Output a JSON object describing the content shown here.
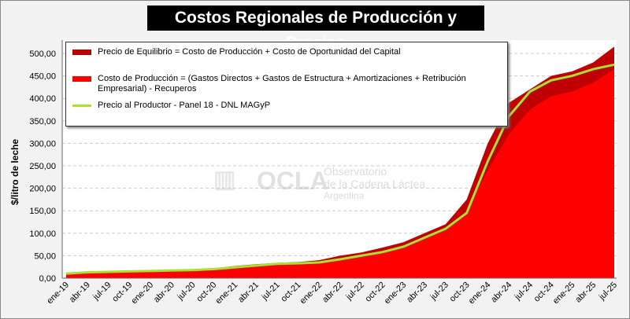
{
  "title": "Costos Regionales de Producción y Precios",
  "watermark": {
    "brand": "OCLA",
    "line1": "Observatorio",
    "line2": "de la Cadena Láctea",
    "line3": "Argentina"
  },
  "colors": {
    "equilibrio": "#c00000",
    "costo": "#ff0000",
    "precio": "#a6e22e"
  },
  "chart_data": {
    "type": "area",
    "title": "Costos Regionales de Producción y Precios",
    "ylabel": "$/litro de leche",
    "xlabel": "",
    "ylim": [
      0,
      500
    ],
    "yticks": [
      "0,00",
      "50,00",
      "100,00",
      "150,00",
      "200,00",
      "250,00",
      "300,00",
      "350,00",
      "400,00",
      "450,00",
      "500,00"
    ],
    "categories": [
      "ene-19",
      "abr-19",
      "jul-19",
      "oct-19",
      "ene-20",
      "abr-20",
      "jul-20",
      "oct-20",
      "ene-21",
      "abr-21",
      "jul-21",
      "oct-21",
      "ene-22",
      "abr-22",
      "jul-22",
      "oct-22",
      "ene-23",
      "abr-23",
      "jul-23",
      "oct-23",
      "ene-24",
      "abr-24",
      "jul-24",
      "oct-24",
      "ene-25",
      "abr-25",
      "jul-25"
    ],
    "series": [
      {
        "name": "Precio de Equilibrio = Costo de Producción + Costo de Oportunidad del Capital",
        "type": "area",
        "values": [
          10,
          13,
          15,
          16,
          17,
          18,
          20,
          22,
          27,
          31,
          34,
          36,
          40,
          50,
          57,
          68,
          80,
          100,
          120,
          175,
          300,
          390,
          420,
          450,
          460,
          480,
          515
        ]
      },
      {
        "name": "Costo de Producción = (Gastos Directos + Gastos de Estructura + Amortizaciones + Retribución Empresarial) - Recuperos",
        "type": "area",
        "values": [
          8,
          11,
          13,
          14,
          15,
          16,
          18,
          20,
          24,
          28,
          31,
          33,
          36,
          45,
          51,
          60,
          72,
          92,
          112,
          150,
          240,
          320,
          375,
          405,
          415,
          435,
          465
        ]
      },
      {
        "name": "Precio al Productor - Panel 18 - DNL MAGyP",
        "type": "line",
        "values": [
          10,
          13,
          14,
          15,
          16,
          17,
          18,
          20,
          24,
          28,
          32,
          33,
          35,
          42,
          50,
          58,
          70,
          90,
          110,
          145,
          260,
          360,
          415,
          440,
          450,
          465,
          475
        ]
      }
    ],
    "legend": "top-left"
  }
}
